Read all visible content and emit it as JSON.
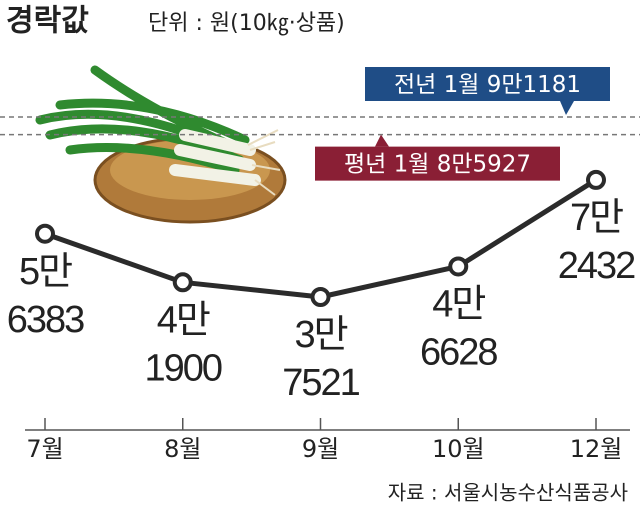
{
  "chart_data": {
    "type": "line",
    "title": "경락값",
    "subtitle": "단위 : 원(10㎏·상품)",
    "source": "자료 : 서울시농수산식품공사",
    "categories": [
      "7월",
      "8월",
      "9월",
      "10월",
      "12월"
    ],
    "values": [
      56383,
      41900,
      37521,
      46628,
      72432
    ],
    "value_labels": [
      [
        "5만",
        "6383"
      ],
      [
        "4만",
        "1900"
      ],
      [
        "3만",
        "7521"
      ],
      [
        "4만",
        "6628"
      ],
      [
        "7만",
        "2432"
      ]
    ],
    "color": "#2b2b2b",
    "reference_lines": [
      {
        "name": "전년 1월",
        "value": 91181,
        "value_label": "9만1181",
        "color": "#1f4d86"
      },
      {
        "name": "평년 1월",
        "value": 85927,
        "value_label": "8만5927",
        "color": "#8a1f35"
      }
    ]
  }
}
